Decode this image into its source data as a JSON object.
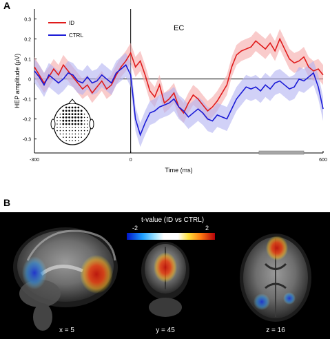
{
  "panel_a_letter": "A",
  "panel_b_letter": "B",
  "condition_label": "EC",
  "colors": {
    "id_line": "#e01b1b",
    "id_band": "#f5a9a9",
    "ctrl_line": "#1a1ad6",
    "ctrl_band": "#b3b3f2",
    "bar_marker": "#a6a6a6"
  },
  "chart_data": {
    "type": "line",
    "xlabel": "Time (ms)",
    "ylabel": "HEP amplitude (µV)",
    "xlim": [
      -300,
      600
    ],
    "ylim": [
      -0.37,
      0.35
    ],
    "x_tick_labels": [
      "-300",
      "0",
      "600"
    ],
    "y_ticks": [
      0.3,
      0.2,
      0.1,
      0,
      -0.1,
      -0.2,
      -0.3
    ],
    "y_tick_labels": [
      "0.3",
      "0.2",
      "0.1",
      "0",
      "-0.1",
      "-0.2",
      "-0.3"
    ],
    "legend_position": "top-left",
    "significant_window": [
      400,
      540
    ],
    "series": [
      {
        "name": "ID",
        "x": [
          -300,
          -285,
          -270,
          -255,
          -240,
          -225,
          -210,
          -195,
          -180,
          -165,
          -150,
          -135,
          -120,
          -105,
          -90,
          -75,
          -60,
          -45,
          -30,
          -15,
          0,
          15,
          30,
          45,
          60,
          75,
          90,
          105,
          120,
          135,
          150,
          165,
          180,
          195,
          210,
          225,
          240,
          255,
          270,
          285,
          300,
          315,
          330,
          345,
          360,
          375,
          390,
          405,
          420,
          435,
          450,
          465,
          480,
          495,
          510,
          525,
          540,
          555,
          570,
          585,
          600
        ],
        "values": [
          0.06,
          0.02,
          -0.02,
          0.01,
          0.05,
          0.02,
          0.07,
          0.04,
          0.01,
          -0.02,
          -0.05,
          -0.03,
          -0.07,
          -0.04,
          -0.01,
          -0.05,
          -0.03,
          0.02,
          0.06,
          0.09,
          0.13,
          0.06,
          0.09,
          0.02,
          -0.06,
          -0.09,
          -0.03,
          -0.12,
          -0.1,
          -0.07,
          -0.14,
          -0.17,
          -0.12,
          -0.08,
          -0.1,
          -0.13,
          -0.16,
          -0.14,
          -0.11,
          -0.07,
          -0.03,
          0.06,
          0.12,
          0.14,
          0.15,
          0.16,
          0.19,
          0.17,
          0.15,
          0.18,
          0.14,
          0.2,
          0.15,
          0.1,
          0.08,
          0.09,
          0.11,
          0.06,
          0.04,
          0.05,
          0.02
        ],
        "error": 0.05
      },
      {
        "name": "CTRL",
        "x": [
          -300,
          -285,
          -270,
          -255,
          -240,
          -225,
          -210,
          -195,
          -180,
          -165,
          -150,
          -135,
          -120,
          -105,
          -90,
          -75,
          -60,
          -45,
          -30,
          -15,
          0,
          15,
          30,
          45,
          60,
          75,
          90,
          105,
          120,
          135,
          150,
          165,
          180,
          195,
          210,
          225,
          240,
          255,
          270,
          285,
          300,
          315,
          330,
          345,
          360,
          375,
          390,
          405,
          420,
          435,
          450,
          465,
          480,
          495,
          510,
          525,
          540,
          555,
          570,
          585,
          600
        ],
        "values": [
          0.04,
          0.01,
          -0.03,
          0.02,
          0.0,
          -0.02,
          0.0,
          0.03,
          0.02,
          -0.01,
          -0.02,
          0.01,
          -0.02,
          -0.01,
          0.02,
          0.0,
          -0.02,
          0.03,
          0.05,
          0.07,
          0.02,
          -0.2,
          -0.28,
          -0.22,
          -0.17,
          -0.16,
          -0.14,
          -0.13,
          -0.12,
          -0.1,
          -0.14,
          -0.16,
          -0.19,
          -0.17,
          -0.15,
          -0.17,
          -0.2,
          -0.21,
          -0.18,
          -0.19,
          -0.2,
          -0.15,
          -0.1,
          -0.07,
          -0.04,
          -0.05,
          -0.04,
          -0.06,
          -0.03,
          -0.05,
          -0.02,
          -0.01,
          -0.03,
          -0.05,
          -0.04,
          0.0,
          -0.01,
          0.01,
          0.03,
          -0.04,
          -0.15
        ],
        "error": 0.06
      }
    ]
  },
  "panel_b": {
    "colorbar_title": "t-value (ID vs CTRL)",
    "colorbar_min": "-2",
    "colorbar_max": "2",
    "slices": [
      {
        "label": "x = 5",
        "view": "sagittal"
      },
      {
        "label": "y = 45",
        "view": "coronal"
      },
      {
        "label": "z = 16",
        "view": "axial"
      }
    ]
  }
}
